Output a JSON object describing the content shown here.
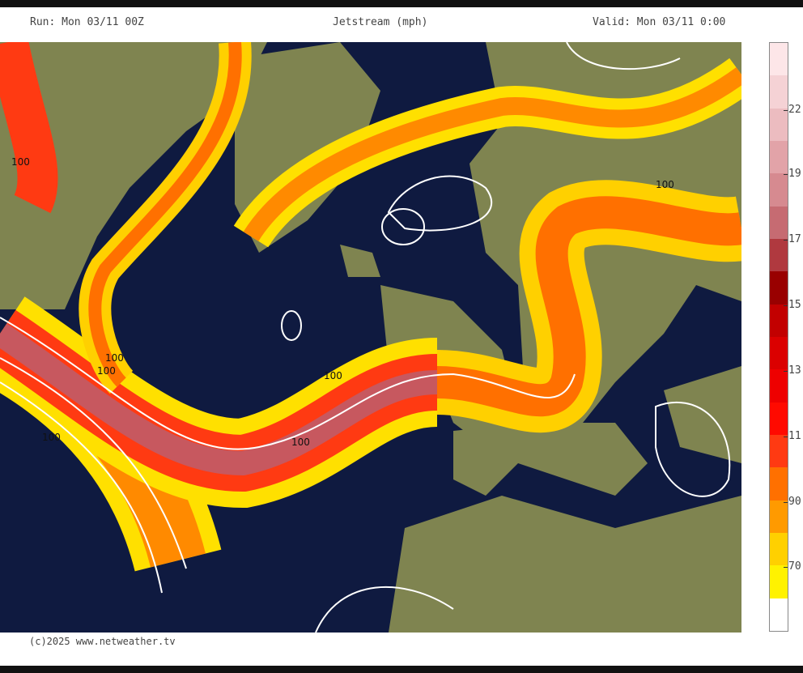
{
  "header": {
    "run": "Run: Mon 03/11 00Z",
    "title": "Jetstream (mph)",
    "valid": "Valid: Mon 03/11 0:00"
  },
  "footer": {
    "copyright": "(c)2025 www.netweather.tv"
  },
  "map": {
    "contour_labels": [
      "100",
      "100",
      "100",
      "100",
      "100",
      "100",
      "100"
    ],
    "colors": {
      "sea": "#0f1a40",
      "land": "#7f8450",
      "contour": "#ffffff"
    }
  },
  "colorbar": {
    "ticks": [
      "22",
      "19",
      "17",
      "15",
      "13",
      "11",
      "90",
      "70"
    ],
    "colors": [
      "#fde6e8",
      "#f5d2d5",
      "#ecbcc0",
      "#e2a3a8",
      "#d68a90",
      "#c66b72",
      "#b0393f",
      "#990000",
      "#c20000",
      "#db0000",
      "#ee0000",
      "#ff0a00",
      "#ff3a12",
      "#ff7000",
      "#ff9a00",
      "#ffd000",
      "#fff200",
      "#ffffff"
    ]
  }
}
